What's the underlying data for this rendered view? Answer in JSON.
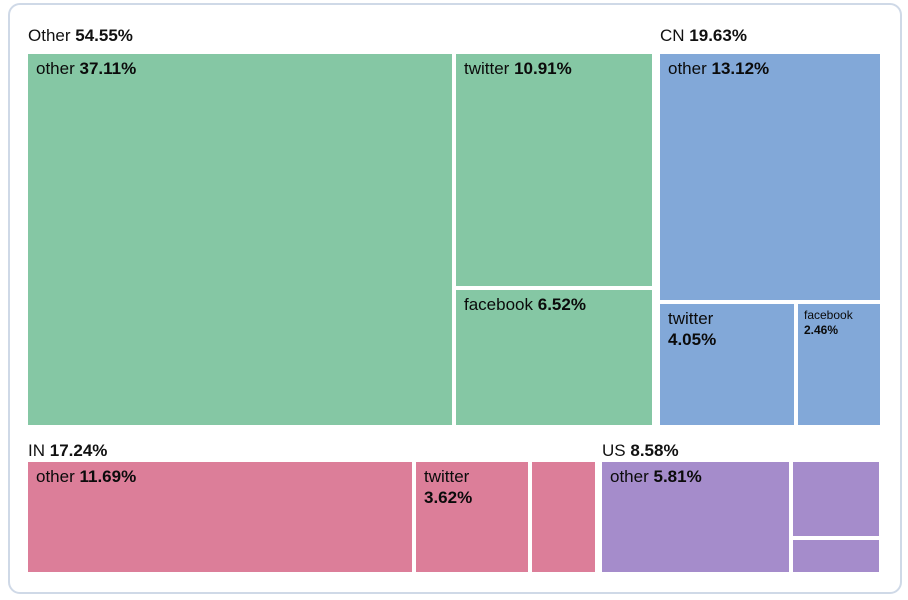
{
  "colors": {
    "other_group": "#85c7a4",
    "cn_group": "#82a8d8",
    "in_group": "#dc7e99",
    "us_group": "#a58ccb",
    "card_border": "#cfd9e7",
    "text": "#111111",
    "background": "#ffffff"
  },
  "chart_data": {
    "type": "treemap",
    "unit": "%",
    "title": "",
    "groups": [
      {
        "label": "Other",
        "value": 54.55,
        "value_label": "54.55%",
        "color": "#85c7a4",
        "children": [
          {
            "label": "other",
            "value": 37.11,
            "value_label": "37.11%",
            "label_shown": true
          },
          {
            "label": "twitter",
            "value": 10.91,
            "value_label": "10.91%",
            "label_shown": true
          },
          {
            "label": "facebook",
            "value": 6.52,
            "value_label": "6.52%",
            "label_shown": true
          }
        ]
      },
      {
        "label": "CN",
        "value": 19.63,
        "value_label": "19.63%",
        "color": "#82a8d8",
        "children": [
          {
            "label": "other",
            "value": 13.12,
            "value_label": "13.12%",
            "label_shown": true
          },
          {
            "label": "twitter",
            "value": 4.05,
            "value_label": "4.05%",
            "label_shown": true
          },
          {
            "label": "facebook",
            "value": 2.46,
            "value_label": "2.46%",
            "label_shown": true
          }
        ]
      },
      {
        "label": "IN",
        "value": 17.24,
        "value_label": "17.24%",
        "color": "#dc7e99",
        "children": [
          {
            "label": "other",
            "value": 11.69,
            "value_label": "11.69%",
            "label_shown": true
          },
          {
            "label": "twitter",
            "value": 3.62,
            "value_label": "3.62%",
            "label_shown": true
          },
          {
            "label": "",
            "value": null,
            "value_label": "",
            "label_shown": false,
            "value_estimate": 1.93
          }
        ]
      },
      {
        "label": "US",
        "value": 8.58,
        "value_label": "8.58%",
        "color": "#a58ccb",
        "children": [
          {
            "label": "other",
            "value": 5.81,
            "value_label": "5.81%",
            "label_shown": true
          },
          {
            "label": "",
            "value": null,
            "value_label": "",
            "label_shown": false,
            "value_estimate": 1.93
          },
          {
            "label": "",
            "value": null,
            "value_label": "",
            "label_shown": false,
            "value_estimate": 0.84
          }
        ]
      }
    ]
  }
}
